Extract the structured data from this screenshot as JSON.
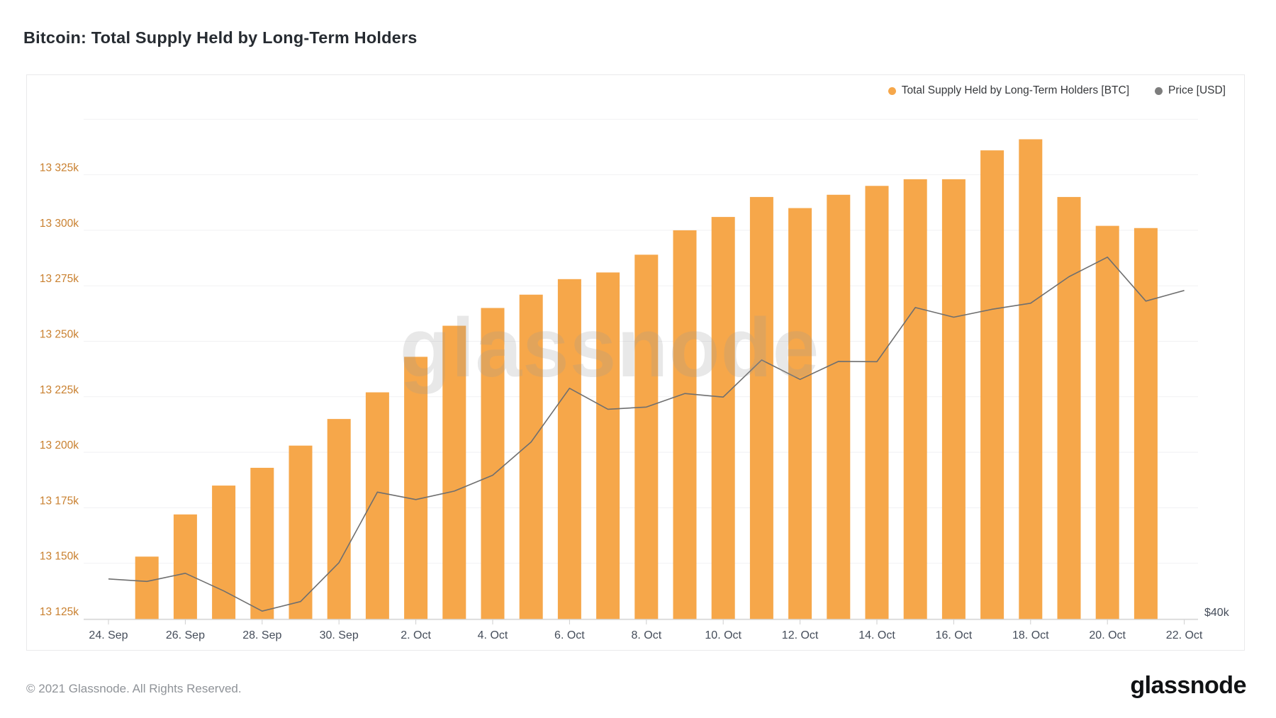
{
  "header": {
    "title": "Bitcoin: Total Supply Held by Long-Term Holders"
  },
  "legend": {
    "items": [
      {
        "label": "Total Supply Held by Long-Term Holders [BTC]",
        "color": "#F6A74A"
      },
      {
        "label": "Price [USD]",
        "color": "#7d7d7d"
      }
    ]
  },
  "watermark": {
    "text": "glassnode"
  },
  "footer": {
    "copyright": "© 2021 Glassnode. All Rights Reserved.",
    "logo": "glassnode"
  },
  "chart_data": {
    "type": "bar+line",
    "title": "Bitcoin: Total Supply Held by Long-Term Holders",
    "categories": [
      "24. Sep",
      "25. Sep",
      "26. Sep",
      "27. Sep",
      "28. Sep",
      "29. Sep",
      "30. Sep",
      "1. Oct",
      "2. Oct",
      "3. Oct",
      "4. Oct",
      "5. Oct",
      "6. Oct",
      "7. Oct",
      "8. Oct",
      "9. Oct",
      "10. Oct",
      "11. Oct",
      "12. Oct",
      "13. Oct",
      "14. Oct",
      "15. Oct",
      "16. Oct",
      "17. Oct",
      "18. Oct",
      "19. Oct",
      "20. Oct",
      "21. Oct",
      "22. Oct"
    ],
    "x_tick_every": 2,
    "series": [
      {
        "name": "Total Supply Held by Long-Term Holders [BTC]",
        "type": "bar",
        "color": "#F6A74A",
        "unit": "k BTC",
        "values": [
          null,
          13153,
          13172,
          13185,
          13193,
          13203,
          13215,
          13227,
          13243,
          13257,
          13265,
          13271,
          13278,
          13281,
          13289,
          13300,
          13306,
          13315,
          13310,
          13316,
          13320,
          13323,
          13323,
          13336,
          13341,
          13315,
          13302,
          13301,
          null
        ]
      },
      {
        "name": "Price [USD]",
        "type": "line",
        "color": "#6f6f6f",
        "unit": "USD",
        "values": [
          42840,
          42700,
          43170,
          42160,
          41030,
          41560,
          43790,
          48140,
          47660,
          48200,
          49240,
          51490,
          55340,
          53800,
          53960,
          54950,
          54690,
          57480,
          56000,
          57370,
          57350,
          61670,
          60880,
          61530,
          62030,
          64280,
          65990,
          62210,
          63100
        ]
      }
    ],
    "y_axis": {
      "side": "left",
      "unit": "BTC",
      "min": 13121,
      "max": 13350,
      "ticks": [
        {
          "value": 13125,
          "label": "13 125k"
        },
        {
          "value": 13150,
          "label": "13 150k"
        },
        {
          "value": 13175,
          "label": "13 175k"
        },
        {
          "value": 13200,
          "label": "13 200k"
        },
        {
          "value": 13225,
          "label": "13 225k"
        },
        {
          "value": 13250,
          "label": "13 250k"
        },
        {
          "value": 13275,
          "label": "13 275k"
        },
        {
          "value": 13300,
          "label": "13 300k"
        },
        {
          "value": 13325,
          "label": "13 325k"
        },
        {
          "value": 13350,
          "label": ""
        }
      ]
    },
    "price_axis": {
      "side": "right",
      "scale": "log",
      "visible_label": "$40k"
    },
    "grid": "horizontal",
    "legend_position": "top-right"
  }
}
